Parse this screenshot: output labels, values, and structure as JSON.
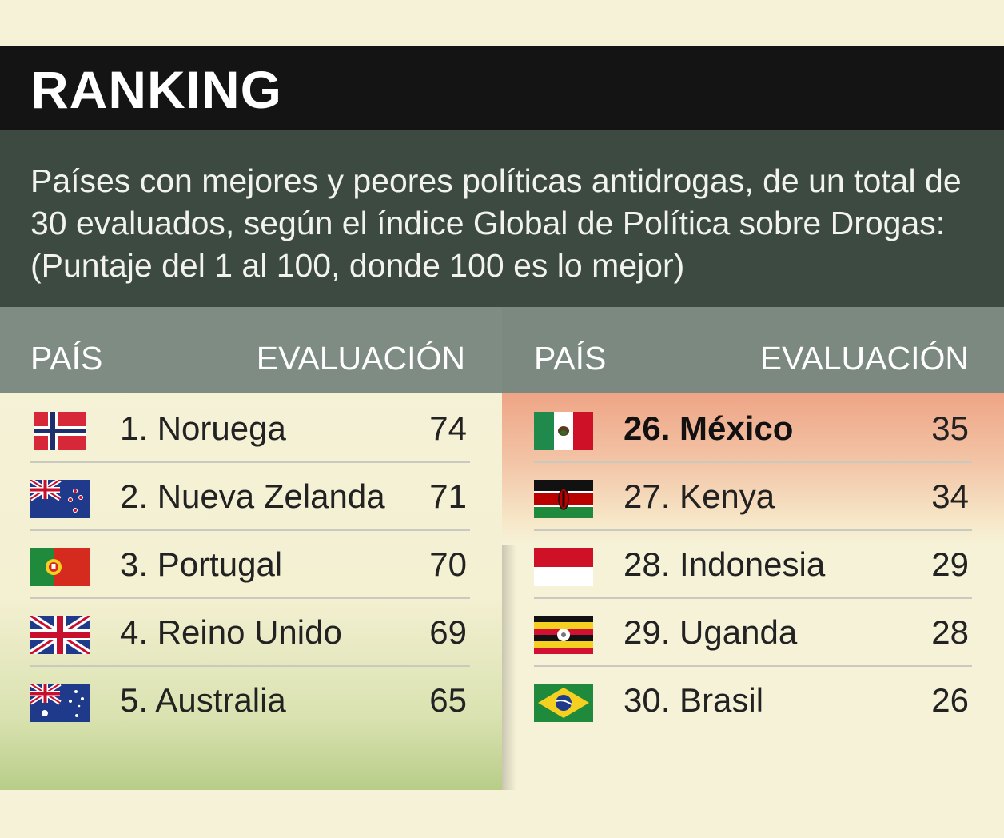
{
  "header": {
    "title": "RANKING"
  },
  "subtitle": "Países con mejores y peores políticas antidrogas, de un total de 30 evaluados, según el índice Global de Política sobre Drogas: (Puntaje del 1 al 100, donde 100 es lo mejor)",
  "columns": {
    "country": "PAÍS",
    "score": "EVALUACIÓN"
  },
  "best": [
    {
      "country": "1. Noruega",
      "score": "74",
      "flag": "norway-flag"
    },
    {
      "country": "2. Nueva Zelanda",
      "score": "71",
      "flag": "new-zealand-flag"
    },
    {
      "country": "3. Portugal",
      "score": "70",
      "flag": "portugal-flag"
    },
    {
      "country": "4. Reino Unido",
      "score": "69",
      "flag": "united-kingdom-flag"
    },
    {
      "country": "5. Australia",
      "score": "65",
      "flag": "australia-flag"
    }
  ],
  "worst": [
    {
      "country": "26. México",
      "score": "35",
      "flag": "mexico-flag",
      "highlight": true
    },
    {
      "country": "27. Kenya",
      "score": "34",
      "flag": "kenya-flag"
    },
    {
      "country": "28. Indonesia",
      "score": "29",
      "flag": "indonesia-flag"
    },
    {
      "country": "29. Uganda",
      "score": "28",
      "flag": "uganda-flag"
    },
    {
      "country": "30. Brasil",
      "score": "26",
      "flag": "brazil-flag"
    }
  ],
  "colors": {
    "header_bg": "#141414",
    "subtitle_bg": "#3c4a42",
    "column_head_bg": "#7e8c84",
    "page_bg": "#f6f2d8",
    "highlight": "#eea586"
  }
}
